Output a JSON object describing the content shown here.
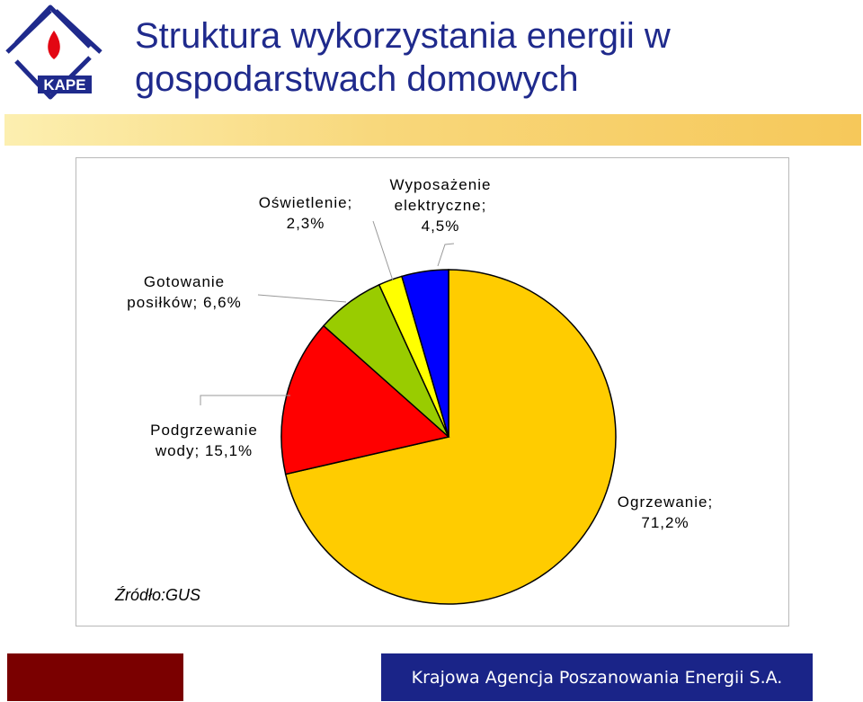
{
  "header": {
    "logo_text": "KAPE",
    "title_line1": "Struktura wykorzystania energii w",
    "title_line2": "gospodarstwach domowych"
  },
  "chart_data": {
    "type": "pie",
    "slices": [
      {
        "label_lines": [
          "Ogrzewanie;",
          "71,2%"
        ],
        "name": "Ogrzewanie",
        "value": 71.2,
        "color": "#ffcc00"
      },
      {
        "label_lines": [
          "Podgrzewanie",
          "wody; 15,1%"
        ],
        "name": "Podgrzewanie wody",
        "value": 15.1,
        "color": "#ff0000"
      },
      {
        "label_lines": [
          "Gotowanie",
          "posiłków; 6,6%"
        ],
        "name": "Gotowanie posiłków",
        "value": 6.6,
        "color": "#99cc00"
      },
      {
        "label_lines": [
          "Oświetlenie;",
          "2,3%"
        ],
        "name": "Oświetlenie",
        "value": 2.3,
        "color": "#ffff00"
      },
      {
        "label_lines": [
          "Wyposażenie",
          "elektryczne;",
          "4,5%"
        ],
        "name": "Wyposażenie elektryczne",
        "value": 4.5,
        "color": "#0000ff"
      }
    ],
    "start": "12 o'clock",
    "direction": "clockwise"
  },
  "source": "Źródło:GUS",
  "footer": {
    "organization": "Krajowa Agencja Poszanowania Energii S.A."
  },
  "colors": {
    "title": "#1f2a8c",
    "footer_left": "#7a0000",
    "footer_right": "#1a2488"
  }
}
